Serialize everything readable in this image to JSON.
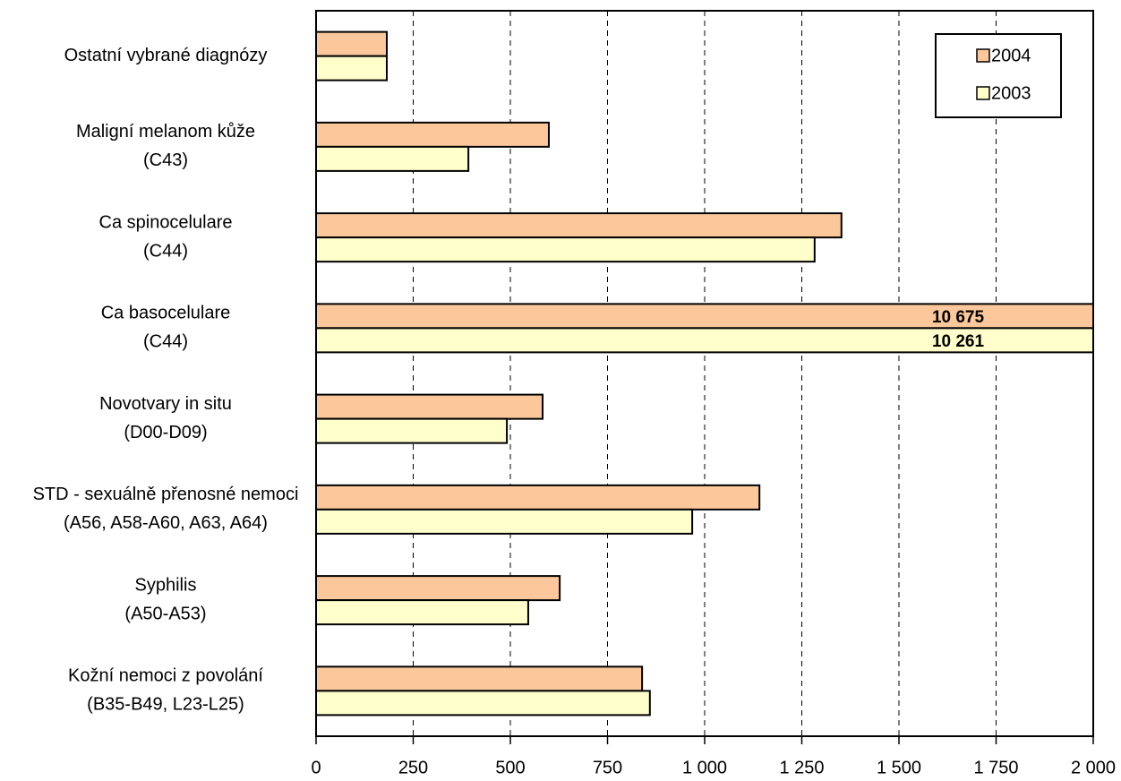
{
  "chart_data": {
    "type": "hbar",
    "categories": [
      [
        "Ostatní vybrané diagnózy"
      ],
      [
        "Maligní melanom kůže",
        "(C43)"
      ],
      [
        "Ca spinocelulare",
        "(C44)"
      ],
      [
        "Ca basocelulare",
        "(C44)"
      ],
      [
        "Novotvary in situ",
        "(D00-D09)"
      ],
      [
        "STD - sexuálně přenosné nemoci",
        "(A56, A58-A60, A63, A64)"
      ],
      [
        "Syphilis",
        "(A50-A53)"
      ],
      [
        "Kožní nemoci z povolání",
        "(B35-B49, L23-L25)"
      ]
    ],
    "series": [
      {
        "name": "2004",
        "color": "#fcc89b",
        "values": [
          182,
          599,
          1352,
          10675,
          583,
          1141,
          627,
          839
        ],
        "value_labels": [
          null,
          null,
          null,
          "10 675",
          null,
          null,
          null,
          null
        ]
      },
      {
        "name": "2003",
        "color": "#ffffcc",
        "values": [
          182,
          392,
          1283,
          10261,
          491,
          968,
          546,
          859
        ],
        "value_labels": [
          null,
          null,
          null,
          "10 261",
          null,
          null,
          null,
          null
        ]
      }
    ],
    "xlim": [
      0,
      2000
    ],
    "xticks": [
      0,
      250,
      500,
      750,
      {
        "value": 1000,
        "label": "1 000"
      },
      {
        "value": 1250,
        "label": "1 250"
      },
      {
        "value": 1500,
        "label": "1 500"
      },
      {
        "value": 1750,
        "label": "1 750"
      },
      {
        "value": 2000,
        "label": "2 000"
      }
    ],
    "grid": true,
    "legend": "upper right"
  }
}
